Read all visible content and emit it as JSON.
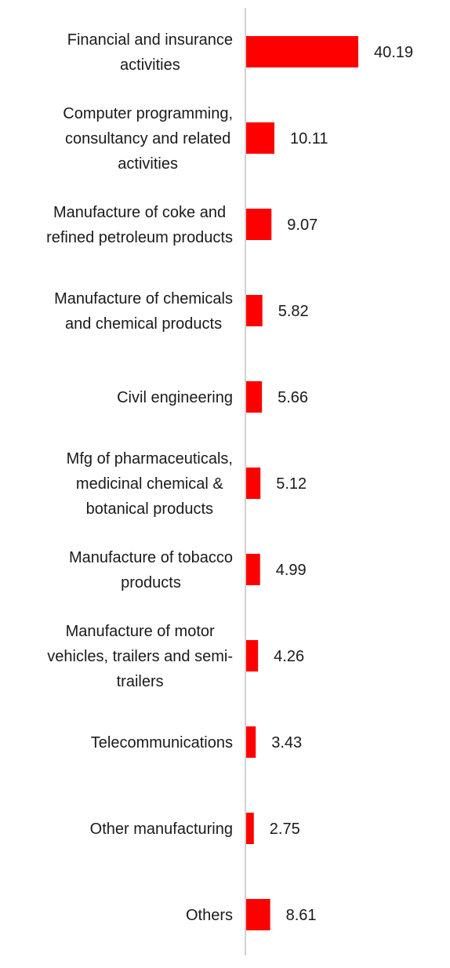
{
  "chart_data": {
    "type": "bar",
    "orientation": "horizontal",
    "title": "",
    "xlabel": "",
    "ylabel": "",
    "legend": "none",
    "grid": false,
    "xlim": [
      0,
      40.19
    ],
    "colors": {
      "bar": "#ff0000",
      "axis": "#d0d0d0",
      "text": "#1a1a1a"
    },
    "categories": [
      [
        "Financial and insurance",
        "activities"
      ],
      [
        "Computer programming,",
        "consultancy and related",
        "activities"
      ],
      [
        "Manufacture of coke and",
        "refined petroleum products"
      ],
      [
        "Manufacture of chemicals",
        "and chemical products"
      ],
      [
        "Civil engineering"
      ],
      [
        "Mfg of pharmaceuticals,",
        "medicinal chemical &",
        "botanical products"
      ],
      [
        "Manufacture of tobacco",
        "products"
      ],
      [
        "Manufacture of motor",
        "vehicles, trailers and semi-",
        "trailers"
      ],
      [
        "Telecommunications"
      ],
      [
        "Other manufacturing"
      ],
      [
        "Others"
      ]
    ],
    "values": [
      40.19,
      10.11,
      9.07,
      5.82,
      5.66,
      5.12,
      4.99,
      4.26,
      3.43,
      2.75,
      8.61
    ],
    "value_labels": [
      "40.19",
      "10.11",
      "9.07",
      "5.82",
      "5.66",
      "5.12",
      "4.99",
      "4.26",
      "3.43",
      "2.75",
      "8.61"
    ]
  }
}
